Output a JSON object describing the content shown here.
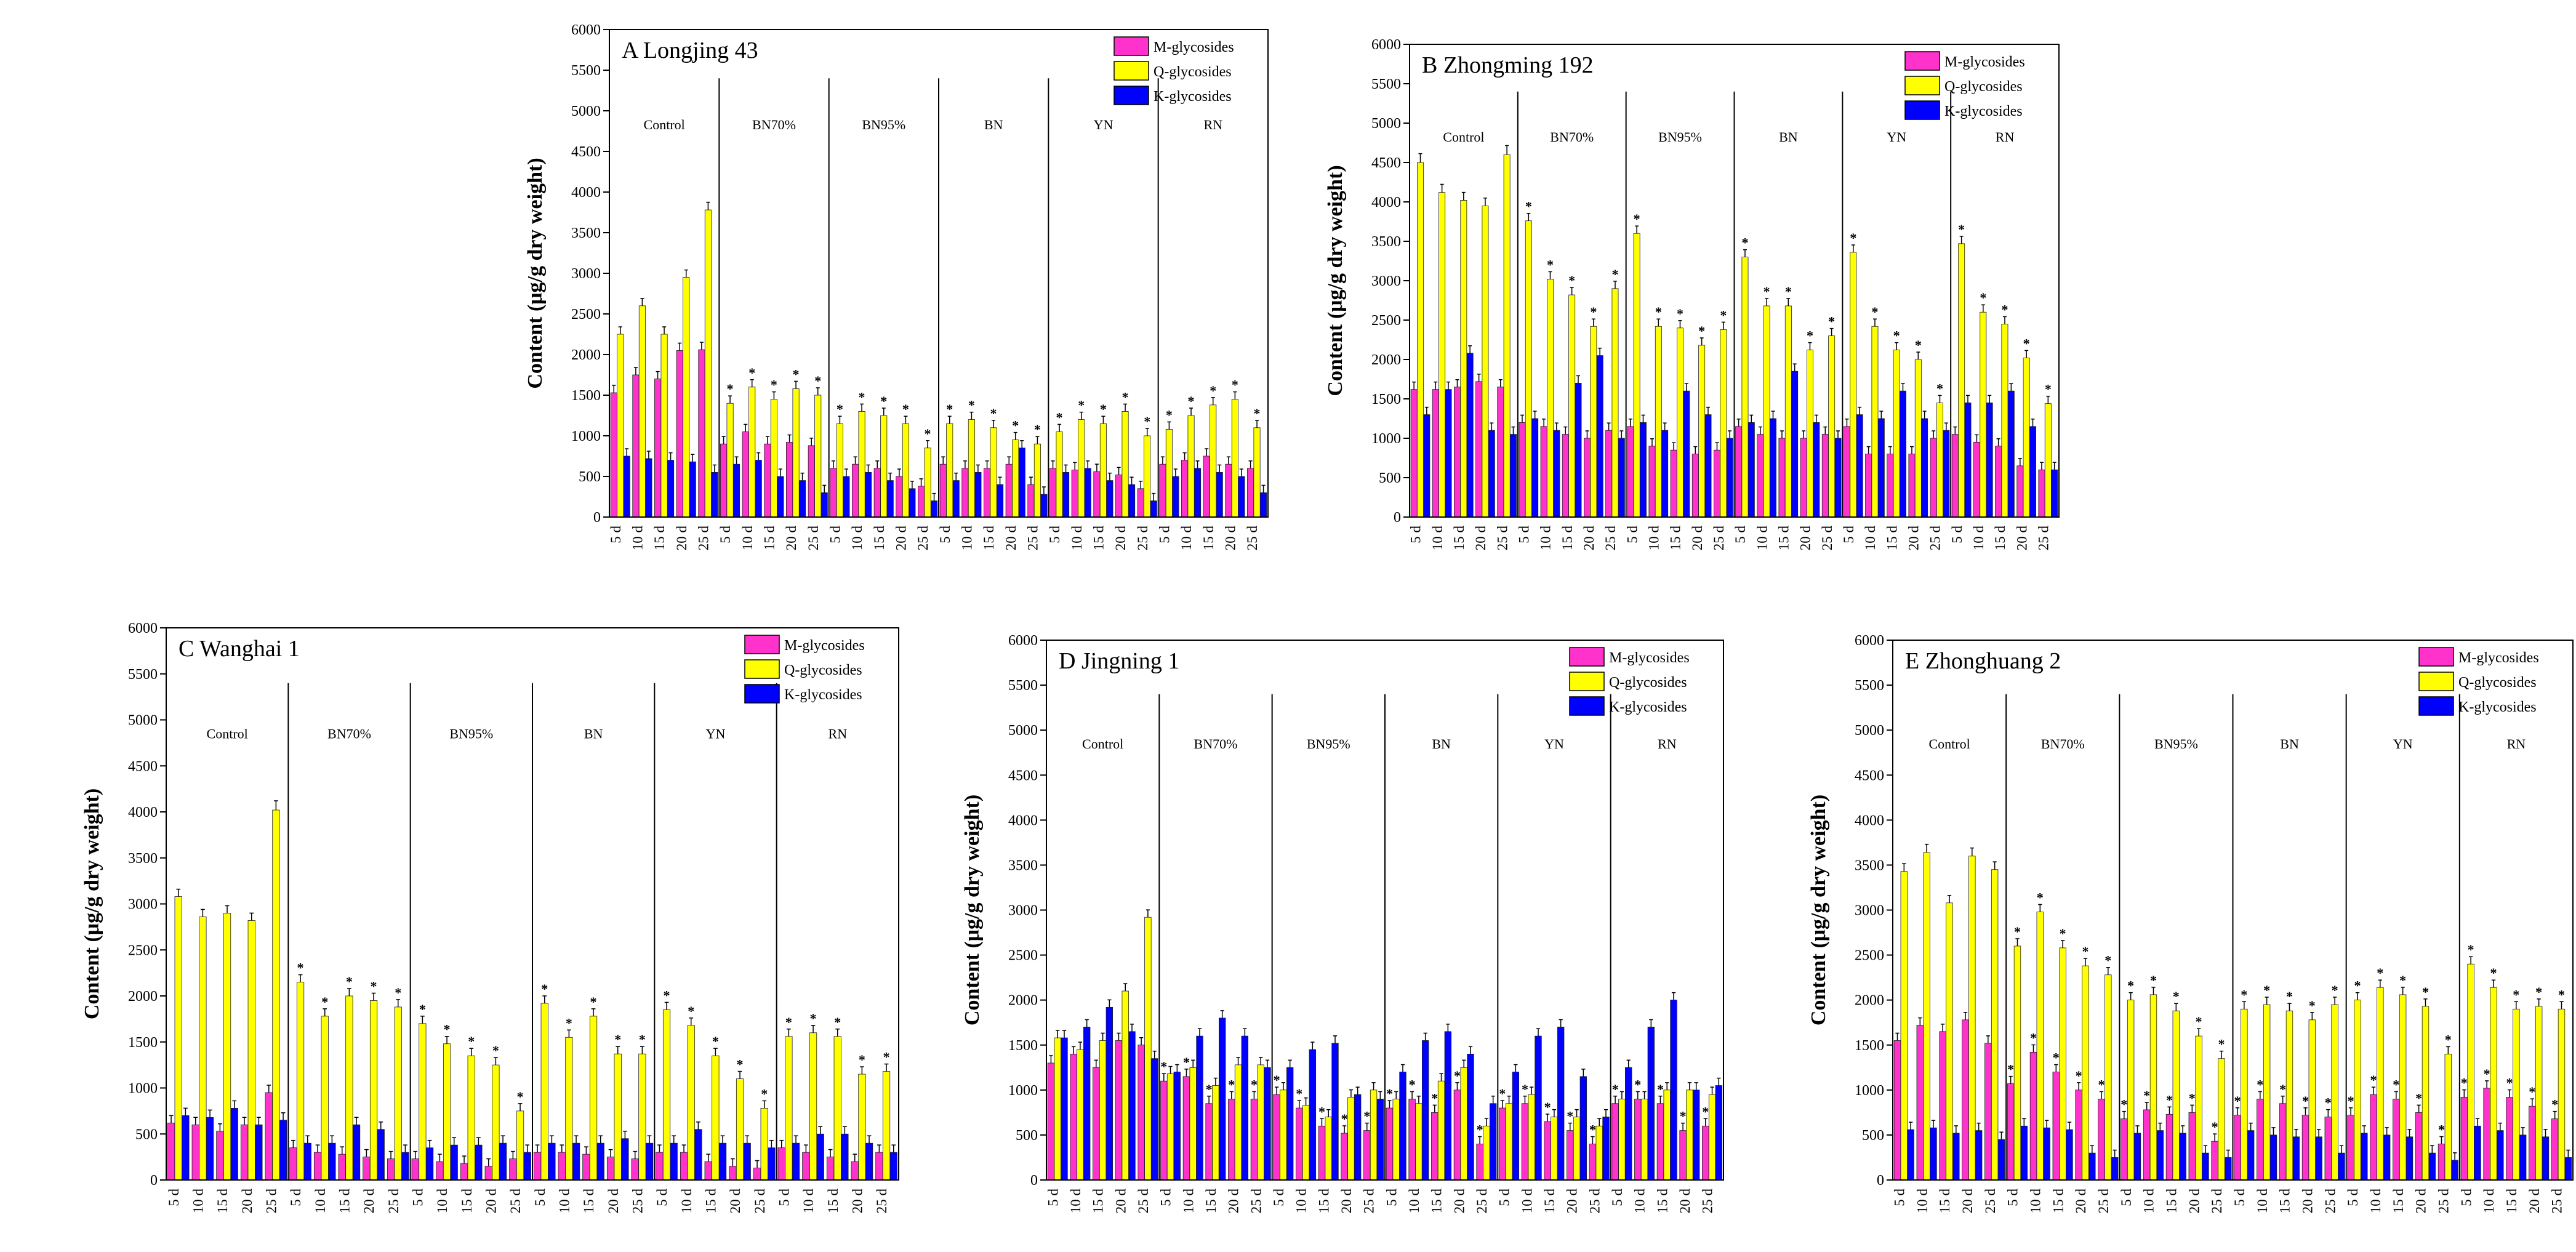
{
  "chart_data": [
    {
      "type": "bar",
      "title": "A  Longjing 43",
      "ylabel": "Content (μg/g dry weight)",
      "ylim": [
        0,
        6000
      ],
      "yticks": [
        0,
        500,
        1000,
        1500,
        2000,
        2500,
        3000,
        3500,
        4000,
        4500,
        5000,
        5500,
        6000
      ],
      "groups": [
        "Control",
        "BN70%",
        "BN95%",
        "BN",
        "YN",
        "RN"
      ],
      "days": [
        "5 d",
        "10 d",
        "15 d",
        "20 d",
        "25 d"
      ],
      "series": [
        {
          "name": "M-glycosides",
          "color": "#ff33cc",
          "values": [
            1530,
            1750,
            1700,
            2050,
            2060,
            900,
            1050,
            900,
            920,
            880,
            600,
            650,
            600,
            500,
            380,
            650,
            600,
            600,
            650,
            400,
            600,
            580,
            560,
            520,
            350,
            650,
            700,
            750,
            650,
            600
          ]
        },
        {
          "name": "Q-glycosides",
          "color": "#ffff00",
          "values": [
            2250,
            2600,
            2250,
            2950,
            3780,
            1400,
            1600,
            1450,
            1580,
            1500,
            1150,
            1300,
            1250,
            1150,
            850,
            1150,
            1200,
            1100,
            950,
            900,
            1050,
            1200,
            1150,
            1300,
            1000,
            1080,
            1250,
            1380,
            1450,
            1100
          ]
        },
        {
          "name": "K-glycosides",
          "color": "#0000ff",
          "values": [
            750,
            720,
            700,
            680,
            550,
            650,
            700,
            500,
            450,
            300,
            500,
            550,
            450,
            350,
            200,
            450,
            550,
            400,
            850,
            280,
            550,
            600,
            450,
            400,
            200,
            500,
            600,
            550,
            500,
            300
          ]
        }
      ],
      "stars": [
        {
          "series": "Q-glycosides",
          "from": 5,
          "to": 29
        }
      ]
    },
    {
      "type": "bar",
      "title": "B  Zhongming 192",
      "ylabel": "Content (μg/g dry weight)",
      "ylim": [
        0,
        6000
      ],
      "yticks": [
        0,
        500,
        1000,
        1500,
        2000,
        2500,
        3000,
        3500,
        4000,
        4500,
        5000,
        5500,
        6000
      ],
      "groups": [
        "Control",
        "BN70%",
        "BN95%",
        "BN",
        "YN",
        "RN"
      ],
      "days": [
        "5 d",
        "10 d",
        "15 d",
        "20 d",
        "25 d"
      ],
      "series": [
        {
          "name": "M-glycosides",
          "color": "#ff33cc",
          "values": [
            1620,
            1620,
            1650,
            1720,
            1650,
            1200,
            1150,
            1050,
            1000,
            1100,
            1150,
            900,
            850,
            800,
            850,
            1150,
            1050,
            1000,
            1000,
            1050,
            1150,
            800,
            800,
            800,
            1000,
            1050,
            950,
            900,
            650,
            600
          ]
        },
        {
          "name": "Q-glycosides",
          "color": "#ffff00",
          "values": [
            4500,
            4120,
            4020,
            3950,
            4600,
            3760,
            3020,
            2820,
            2420,
            2900,
            3600,
            2420,
            2400,
            2180,
            2380,
            3300,
            2680,
            2680,
            2120,
            2300,
            3360,
            2420,
            2120,
            2000,
            1450,
            3470,
            2600,
            2450,
            2020,
            1440
          ]
        },
        {
          "name": "K-glycosides",
          "color": "#0000ff",
          "values": [
            1300,
            1620,
            2080,
            1100,
            1050,
            1250,
            1100,
            1700,
            2050,
            1000,
            1200,
            1100,
            1600,
            1300,
            1000,
            1200,
            1250,
            1850,
            1200,
            1000,
            1300,
            1250,
            1600,
            1250,
            1100,
            1450,
            1450,
            1600,
            1150,
            600
          ]
        }
      ],
      "stars": [
        {
          "series": "Q-glycosides",
          "from": 5,
          "to": 29
        }
      ]
    },
    {
      "type": "bar",
      "title": "C  Wanghai 1",
      "ylabel": "Content (μg/g dry weight)",
      "ylim": [
        0,
        6000
      ],
      "yticks": [
        0,
        500,
        1000,
        1500,
        2000,
        2500,
        3000,
        3500,
        4000,
        4500,
        5000,
        5500,
        6000
      ],
      "groups": [
        "Control",
        "BN70%",
        "BN95%",
        "BN",
        "YN",
        "RN"
      ],
      "days": [
        "5 d",
        "10 d",
        "15 d",
        "20 d",
        "25 d"
      ],
      "series": [
        {
          "name": "M-glycosides",
          "color": "#ff33cc",
          "values": [
            620,
            600,
            530,
            600,
            950,
            350,
            300,
            280,
            250,
            230,
            230,
            200,
            180,
            150,
            230,
            300,
            300,
            280,
            250,
            230,
            300,
            300,
            200,
            150,
            130,
            350,
            300,
            250,
            200,
            300
          ]
        },
        {
          "name": "Q-glycosides",
          "color": "#ffff00",
          "values": [
            3080,
            2860,
            2900,
            2820,
            4020,
            2150,
            1780,
            2000,
            1950,
            1880,
            1700,
            1480,
            1350,
            1250,
            750,
            1920,
            1550,
            1780,
            1370,
            1370,
            1850,
            1680,
            1350,
            1100,
            780,
            1560,
            1600,
            1560,
            1150,
            1180
          ]
        },
        {
          "name": "K-glycosides",
          "color": "#0000ff",
          "values": [
            700,
            680,
            780,
            600,
            650,
            400,
            400,
            600,
            550,
            300,
            350,
            380,
            380,
            400,
            300,
            400,
            400,
            400,
            450,
            400,
            400,
            550,
            400,
            400,
            350,
            400,
            500,
            500,
            400,
            300
          ]
        }
      ],
      "stars": [
        {
          "series": "Q-glycosides",
          "from": 5,
          "to": 29
        }
      ]
    },
    {
      "type": "bar",
      "title": "D  Jingning 1",
      "ylabel": "Content (μg/g dry weight)",
      "ylim": [
        0,
        6000
      ],
      "yticks": [
        0,
        500,
        1000,
        1500,
        2000,
        2500,
        3000,
        3500,
        4000,
        4500,
        5000,
        5500,
        6000
      ],
      "groups": [
        "Control",
        "BN70%",
        "BN95%",
        "BN",
        "YN",
        "RN"
      ],
      "days": [
        "5 d",
        "10 d",
        "15 d",
        "20 d",
        "25 d"
      ],
      "series": [
        {
          "name": "M-glycosides",
          "color": "#ff33cc",
          "values": [
            1300,
            1400,
            1250,
            1550,
            1500,
            1100,
            1150,
            850,
            900,
            900,
            950,
            800,
            600,
            520,
            550,
            800,
            900,
            750,
            1000,
            400,
            800,
            850,
            650,
            550,
            400,
            850,
            900,
            850,
            550,
            600
          ]
        },
        {
          "name": "Q-glycosides",
          "color": "#ffff00",
          "values": [
            1580,
            1450,
            1550,
            2100,
            2920,
            1180,
            1250,
            1050,
            1280,
            1280,
            1000,
            830,
            700,
            920,
            1000,
            900,
            850,
            1100,
            1250,
            600,
            850,
            950,
            700,
            700,
            600,
            900,
            900,
            1000,
            1000,
            950
          ]
        },
        {
          "name": "K-glycosides",
          "color": "#0000ff",
          "values": [
            1580,
            1700,
            1920,
            1650,
            1350,
            1200,
            1600,
            1800,
            1600,
            1250,
            1250,
            1450,
            1520,
            950,
            900,
            1200,
            1550,
            1650,
            1400,
            850,
            1200,
            1600,
            1700,
            1150,
            700,
            1250,
            1700,
            2000,
            1000,
            1050
          ]
        }
      ],
      "stars": [
        {
          "series": "M-glycosides",
          "from": 5,
          "to": 29
        }
      ]
    },
    {
      "type": "bar",
      "title": "E  Zhonghuang 2",
      "ylabel": "Content (μg/g dry weight)",
      "ylim": [
        0,
        6000
      ],
      "yticks": [
        0,
        500,
        1000,
        1500,
        2000,
        2500,
        3000,
        3500,
        4000,
        4500,
        5000,
        5500,
        6000
      ],
      "groups": [
        "Control",
        "BN70%",
        "BN95%",
        "BN",
        "YN",
        "RN"
      ],
      "days": [
        "5 d",
        "10 d",
        "15 d",
        "20 d",
        "25 d"
      ],
      "series": [
        {
          "name": "M-glycosides",
          "color": "#ff33cc",
          "values": [
            1550,
            1720,
            1650,
            1780,
            1520,
            1070,
            1420,
            1200,
            1000,
            900,
            680,
            780,
            730,
            750,
            430,
            720,
            900,
            850,
            720,
            700,
            720,
            950,
            900,
            750,
            400,
            920,
            1020,
            920,
            820,
            680
          ]
        },
        {
          "name": "Q-glycosides",
          "color": "#ffff00",
          "values": [
            3430,
            3640,
            3080,
            3600,
            3450,
            2600,
            2980,
            2580,
            2380,
            2280,
            2000,
            2060,
            1880,
            1600,
            1350,
            1900,
            1950,
            1880,
            1780,
            1950,
            2000,
            2140,
            2060,
            1930,
            1400,
            2400,
            2140,
            1900,
            1930,
            1900
          ]
        },
        {
          "name": "K-glycosides",
          "color": "#0000ff",
          "values": [
            560,
            580,
            520,
            550,
            450,
            600,
            580,
            560,
            300,
            250,
            520,
            550,
            520,
            300,
            250,
            550,
            500,
            480,
            480,
            300,
            520,
            500,
            480,
            300,
            220,
            600,
            550,
            500,
            480,
            250
          ]
        }
      ],
      "stars": [
        {
          "series": "Q-glycosides",
          "from": 5,
          "to": 29
        },
        {
          "series": "M-glycosides",
          "from": 5,
          "to": 29
        }
      ]
    }
  ]
}
